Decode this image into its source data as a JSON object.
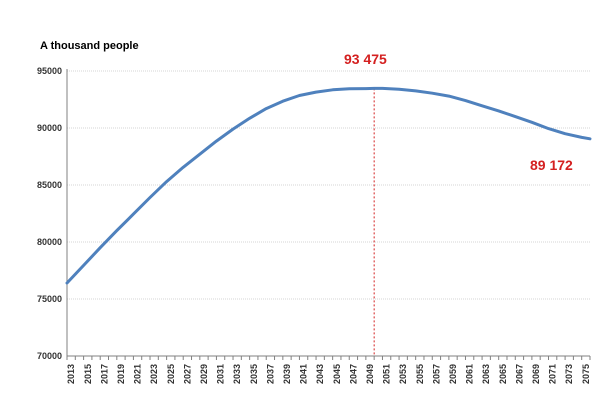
{
  "chart_data": {
    "type": "line",
    "ylabel": "A thousand people",
    "ylim": [
      70000,
      95000
    ],
    "yticks": [
      "70000",
      "75000",
      "80000",
      "85000",
      "90000",
      "95000"
    ],
    "xlim": [
      2013,
      2076
    ],
    "xtick_labels": [
      "2013",
      "2015",
      "2017",
      "2019",
      "2021",
      "2023",
      "2025",
      "2027",
      "2029",
      "2031",
      "2033",
      "2035",
      "2037",
      "2039",
      "2041",
      "2043",
      "2045",
      "2047",
      "2049",
      "2051",
      "2053",
      "2055",
      "2057",
      "2059",
      "2061",
      "2063",
      "2065",
      "2067",
      "2069",
      "2071",
      "2073",
      "2075"
    ],
    "grid": "horizontal",
    "line_color": "#4f81bd",
    "annotation_color": "#d42020",
    "series": [
      {
        "x": [
          2013,
          2015,
          2017,
          2019,
          2021,
          2023,
          2025,
          2027,
          2029,
          2031,
          2033,
          2035,
          2037,
          2039,
          2041,
          2043,
          2045,
          2047,
          2049,
          2050,
          2051,
          2053,
          2055,
          2057,
          2059,
          2061,
          2063,
          2065,
          2067,
          2069,
          2071,
          2073,
          2075,
          2076
        ],
        "values": [
          76400,
          77950,
          79500,
          81000,
          82450,
          83900,
          85300,
          86550,
          87700,
          88850,
          89900,
          90850,
          91700,
          92350,
          92850,
          93150,
          93350,
          93450,
          93460,
          93475,
          93470,
          93400,
          93250,
          93050,
          92800,
          92400,
          91950,
          91500,
          91000,
          90500,
          89950,
          89500,
          89172,
          89050
        ]
      }
    ],
    "annotations": {
      "peak": {
        "label": "93 475",
        "x": 2050,
        "value": 93475
      },
      "end": {
        "label": "89 172",
        "x": 2075,
        "value": 89172
      }
    }
  }
}
